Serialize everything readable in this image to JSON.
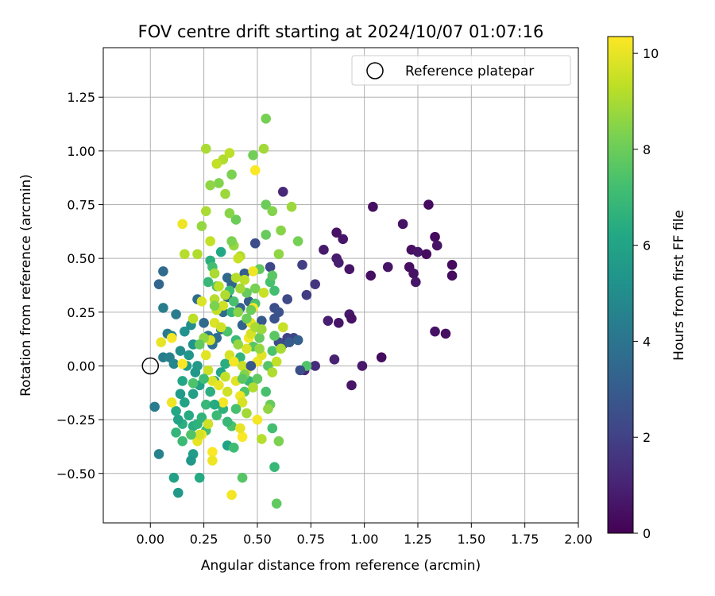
{
  "chart_data": {
    "type": "scatter",
    "title": "FOV centre drift starting at 2024/10/07 01:07:16",
    "xlabel": "Angular distance from reference (arcmin)",
    "ylabel": "Rotation from reference (arcmin)",
    "xlim": [
      -0.22,
      2.0
    ],
    "ylim": [
      -0.73,
      1.48
    ],
    "xticks": [
      0.0,
      0.25,
      0.5,
      0.75,
      1.0,
      1.25,
      1.5,
      1.75,
      2.0
    ],
    "xtick_labels": [
      "0.00",
      "0.25",
      "0.50",
      "0.75",
      "1.00",
      "1.25",
      "1.50",
      "1.75",
      "2.00"
    ],
    "yticks": [
      -0.5,
      -0.25,
      0.0,
      0.25,
      0.5,
      0.75,
      1.0,
      1.25
    ],
    "ytick_labels": [
      "−0.50",
      "−0.25",
      "0.00",
      "0.25",
      "0.50",
      "0.75",
      "1.00",
      "1.25"
    ],
    "grid": true,
    "legend": {
      "placement": "top-right",
      "entries": [
        {
          "label": "Reference platepar",
          "marker": "open-circle"
        }
      ]
    },
    "reference_point": {
      "x": 0.0,
      "y": 0.0
    },
    "colorbar": {
      "label": "Hours from first FF file",
      "colormap": "viridis",
      "range": [
        0,
        10.35
      ],
      "ticks": [
        0,
        2,
        4,
        6,
        8,
        10
      ],
      "tick_labels": [
        "0",
        "2",
        "4",
        "6",
        "8",
        "10"
      ]
    },
    "points": [
      [
        1.3,
        0.75,
        0.3
      ],
      [
        1.04,
        0.74,
        0.4
      ],
      [
        1.18,
        0.66,
        0.5
      ],
      [
        1.33,
        0.6,
        0.3
      ],
      [
        1.22,
        0.54,
        0.4
      ],
      [
        1.25,
        0.53,
        0.6
      ],
      [
        1.29,
        0.52,
        0.3
      ],
      [
        1.34,
        0.56,
        0.5
      ],
      [
        1.11,
        0.46,
        0.6
      ],
      [
        1.21,
        0.46,
        0.4
      ],
      [
        1.41,
        0.47,
        0.3
      ],
      [
        1.23,
        0.43,
        0.5
      ],
      [
        1.41,
        0.42,
        0.3
      ],
      [
        1.03,
        0.42,
        0.4
      ],
      [
        1.24,
        0.39,
        0.6
      ],
      [
        1.33,
        0.16,
        0.5
      ],
      [
        1.38,
        0.15,
        0.4
      ],
      [
        1.08,
        0.04,
        0.3
      ],
      [
        0.99,
        0.0,
        0.7
      ],
      [
        0.94,
        -0.09,
        0.6
      ],
      [
        0.87,
        0.62,
        0.5
      ],
      [
        0.9,
        0.59,
        0.6
      ],
      [
        0.81,
        0.54,
        0.7
      ],
      [
        0.87,
        0.5,
        0.8
      ],
      [
        0.88,
        0.48,
        0.9
      ],
      [
        0.93,
        0.45,
        0.6
      ],
      [
        0.93,
        0.24,
        0.7
      ],
      [
        0.94,
        0.22,
        0.5
      ],
      [
        0.83,
        0.21,
        0.9
      ],
      [
        0.88,
        0.2,
        0.6
      ],
      [
        0.86,
        0.03,
        1.0
      ],
      [
        0.77,
        0.0,
        1.3
      ],
      [
        0.62,
        0.81,
        1.2
      ],
      [
        0.73,
        0.33,
        1.8
      ],
      [
        0.77,
        0.38,
        1.6
      ],
      [
        0.71,
        0.47,
        1.9
      ],
      [
        0.67,
        0.13,
        2.1
      ],
      [
        0.72,
        -0.02,
        1.2
      ],
      [
        0.64,
        0.31,
        2.3
      ],
      [
        0.58,
        0.27,
        2.5
      ],
      [
        0.56,
        0.46,
        2.2
      ],
      [
        0.6,
        0.25,
        2.6
      ],
      [
        0.6,
        0.11,
        2.3
      ],
      [
        0.62,
        0.1,
        2.4
      ],
      [
        0.64,
        0.13,
        2.0
      ],
      [
        0.58,
        0.22,
        2.7
      ],
      [
        0.52,
        0.21,
        2.9
      ],
      [
        0.49,
        0.57,
        2.4
      ],
      [
        0.46,
        0.3,
        3.0
      ],
      [
        0.44,
        0.43,
        3.1
      ],
      [
        0.42,
        0.27,
        3.2
      ],
      [
        0.43,
        0.19,
        3.3
      ],
      [
        0.38,
        0.38,
        3.4
      ],
      [
        0.36,
        0.41,
        3.5
      ],
      [
        0.36,
        0.32,
        3.2
      ],
      [
        0.34,
        0.25,
        3.6
      ],
      [
        0.33,
        0.17,
        3.8
      ],
      [
        0.31,
        0.13,
        3.7
      ],
      [
        0.29,
        0.1,
        3.9
      ],
      [
        0.27,
        0.14,
        4.0
      ],
      [
        0.25,
        0.2,
        3.5
      ],
      [
        0.22,
        0.31,
        3.7
      ],
      [
        0.06,
        0.44,
        3.6
      ],
      [
        0.04,
        0.38,
        3.4
      ],
      [
        0.06,
        0.27,
        4.4
      ],
      [
        0.08,
        0.15,
        4.2
      ],
      [
        0.12,
        0.24,
        4.3
      ],
      [
        0.1,
        0.14,
        4.6
      ],
      [
        0.06,
        0.04,
        4.3
      ],
      [
        0.09,
        0.04,
        4.5
      ],
      [
        0.11,
        0.01,
        4.8
      ],
      [
        0.14,
        0.07,
        5.0
      ],
      [
        0.16,
        0.16,
        5.2
      ],
      [
        0.18,
        0.05,
        5.4
      ],
      [
        0.19,
        0.19,
        5.1
      ],
      [
        0.2,
        0.1,
        5.3
      ],
      [
        0.22,
        0.0,
        5.6
      ],
      [
        0.17,
        0.0,
        5.7
      ],
      [
        0.21,
        -0.03,
        5.5
      ],
      [
        0.2,
        -0.13,
        5.8
      ],
      [
        0.23,
        -0.09,
        5.9
      ],
      [
        0.15,
        -0.07,
        6.1
      ],
      [
        0.14,
        -0.13,
        5.6
      ],
      [
        0.16,
        -0.17,
        6.0
      ],
      [
        0.12,
        -0.21,
        6.2
      ],
      [
        0.18,
        -0.23,
        6.3
      ],
      [
        0.2,
        -0.28,
        6.4
      ],
      [
        0.15,
        -0.27,
        6.5
      ],
      [
        0.13,
        -0.25,
        6.0
      ],
      [
        0.22,
        -0.27,
        6.6
      ],
      [
        0.24,
        -0.24,
        6.7
      ],
      [
        0.12,
        -0.31,
        6.8
      ],
      [
        0.15,
        -0.35,
        7.0
      ],
      [
        0.2,
        -0.41,
        5.7
      ],
      [
        0.19,
        -0.44,
        5.5
      ],
      [
        0.11,
        -0.52,
        5.9
      ],
      [
        0.23,
        -0.52,
        6.3
      ],
      [
        0.13,
        -0.59,
        5.5
      ],
      [
        0.04,
        -0.41,
        4.5
      ],
      [
        0.02,
        -0.19,
        4.3
      ],
      [
        0.28,
        0.49,
        6.5
      ],
      [
        0.29,
        0.46,
        7.2
      ],
      [
        0.33,
        0.53,
        6.2
      ],
      [
        0.27,
        0.39,
        6.9
      ],
      [
        0.31,
        0.37,
        7.5
      ],
      [
        0.37,
        0.35,
        7.1
      ],
      [
        0.39,
        0.3,
        7.3
      ],
      [
        0.38,
        0.25,
        6.8
      ],
      [
        0.36,
        0.16,
        7.4
      ],
      [
        0.4,
        0.12,
        7.0
      ],
      [
        0.42,
        0.04,
        6.7
      ],
      [
        0.35,
        0.01,
        6.4
      ],
      [
        0.33,
        -0.03,
        6.1
      ],
      [
        0.3,
        -0.07,
        5.9
      ],
      [
        0.28,
        -0.12,
        6.5
      ],
      [
        0.26,
        -0.18,
        6.9
      ],
      [
        0.26,
        -0.3,
        7.2
      ],
      [
        0.31,
        -0.23,
        7.0
      ],
      [
        0.34,
        -0.2,
        6.6
      ],
      [
        0.36,
        -0.37,
        6.0
      ],
      [
        0.38,
        -0.28,
        7.4
      ],
      [
        0.39,
        -0.38,
        7.1
      ],
      [
        0.43,
        -0.52,
        7.6
      ],
      [
        0.44,
        -0.12,
        7.5
      ],
      [
        0.46,
        -0.07,
        6.8
      ],
      [
        0.5,
        -0.06,
        7.8
      ],
      [
        0.54,
        -0.12,
        7.3
      ],
      [
        0.56,
        -0.18,
        7.9
      ],
      [
        0.57,
        -0.29,
        7.2
      ],
      [
        0.58,
        -0.47,
        6.9
      ],
      [
        0.59,
        -0.64,
        7.8
      ],
      [
        0.55,
        0.0,
        7.6
      ],
      [
        0.57,
        0.07,
        7.4
      ],
      [
        0.58,
        0.14,
        7.7
      ],
      [
        0.51,
        0.13,
        7.9
      ],
      [
        0.48,
        0.09,
        7.6
      ],
      [
        0.49,
        0.29,
        7.4
      ],
      [
        0.51,
        0.45,
        7.8
      ],
      [
        0.54,
        0.61,
        7.9
      ],
      [
        0.56,
        0.39,
        7.3
      ],
      [
        0.57,
        0.42,
        7.7
      ],
      [
        0.58,
        0.35,
        7.2
      ],
      [
        0.54,
        0.75,
        8.0
      ],
      [
        0.57,
        0.72,
        8.4
      ],
      [
        0.66,
        0.74,
        8.8
      ],
      [
        0.61,
        0.63,
        8.5
      ],
      [
        0.69,
        0.58,
        8.2
      ],
      [
        0.6,
        0.52,
        8.6
      ],
      [
        0.54,
        1.15,
        8.2
      ],
      [
        0.53,
        1.01,
        8.9
      ],
      [
        0.48,
        0.98,
        8.1
      ],
      [
        0.38,
        0.89,
        8.3
      ],
      [
        0.4,
        0.68,
        8.0
      ],
      [
        0.37,
        0.71,
        8.5
      ],
      [
        0.35,
        0.8,
        8.8
      ],
      [
        0.32,
        0.85,
        8.4
      ],
      [
        0.28,
        0.84,
        8.6
      ],
      [
        0.34,
        0.96,
        9.1
      ],
      [
        0.37,
        0.99,
        9.3
      ],
      [
        0.26,
        1.01,
        9.0
      ],
      [
        0.31,
        0.94,
        9.4
      ],
      [
        0.39,
        0.56,
        8.7
      ],
      [
        0.42,
        0.51,
        9.1
      ],
      [
        0.41,
        0.5,
        9.5
      ],
      [
        0.4,
        0.41,
        9.2
      ],
      [
        0.44,
        0.4,
        9.3
      ],
      [
        0.38,
        0.58,
        8.3
      ],
      [
        0.26,
        0.72,
        9.0
      ],
      [
        0.24,
        0.65,
        8.7
      ],
      [
        0.28,
        0.58,
        9.4
      ],
      [
        0.22,
        0.52,
        9.1
      ],
      [
        0.3,
        0.43,
        9.0
      ],
      [
        0.32,
        0.37,
        9.3
      ],
      [
        0.35,
        0.33,
        9.1
      ],
      [
        0.34,
        0.28,
        9.6
      ],
      [
        0.31,
        0.26,
        9.4
      ],
      [
        0.3,
        0.2,
        9.8
      ],
      [
        0.28,
        0.12,
        9.7
      ],
      [
        0.26,
        0.05,
        9.9
      ],
      [
        0.27,
        -0.02,
        9.5
      ],
      [
        0.29,
        -0.07,
        9.8
      ],
      [
        0.32,
        -0.09,
        10.0
      ],
      [
        0.34,
        -0.17,
        10.2
      ],
      [
        0.36,
        -0.12,
        9.6
      ],
      [
        0.4,
        -0.07,
        9.9
      ],
      [
        0.42,
        -0.14,
        10.1
      ],
      [
        0.43,
        -0.17,
        9.7
      ],
      [
        0.45,
        -0.02,
        10.0
      ],
      [
        0.43,
        0.0,
        9.5
      ],
      [
        0.45,
        0.08,
        9.8
      ],
      [
        0.46,
        0.13,
        10.2
      ],
      [
        0.47,
        0.15,
        9.7
      ],
      [
        0.47,
        0.2,
        10.0
      ],
      [
        0.48,
        0.27,
        10.3
      ],
      [
        0.48,
        0.44,
        10.1
      ],
      [
        0.49,
        0.91,
        10.3
      ],
      [
        0.5,
        0.02,
        10.1
      ],
      [
        0.5,
        -0.25,
        10.2
      ],
      [
        0.43,
        -0.33,
        10.3
      ],
      [
        0.42,
        -0.29,
        10.0
      ],
      [
        0.38,
        -0.6,
        10.2
      ],
      [
        0.29,
        -0.4,
        10.3
      ],
      [
        0.29,
        -0.44,
        10.1
      ],
      [
        0.24,
        -0.32,
        10.2
      ],
      [
        0.22,
        -0.35,
        10.0
      ],
      [
        0.27,
        -0.27,
        9.6
      ],
      [
        0.23,
        -0.32,
        9.7
      ],
      [
        0.1,
        -0.17,
        10.1
      ],
      [
        0.15,
        0.01,
        10.3
      ],
      [
        0.1,
        0.13,
        10.2
      ],
      [
        0.05,
        0.11,
        10.0
      ],
      [
        0.15,
        0.66,
        10.1
      ],
      [
        0.16,
        0.52,
        9.2
      ],
      [
        0.2,
        0.22,
        9.3
      ],
      [
        0.24,
        0.3,
        9.8
      ],
      [
        0.3,
        0.31,
        9.2
      ],
      [
        0.33,
        0.18,
        9.6
      ],
      [
        0.37,
        0.05,
        9.7
      ],
      [
        0.39,
        0.02,
        10.2
      ],
      [
        0.35,
        -0.05,
        9.4
      ],
      [
        0.52,
        0.05,
        9.9
      ],
      [
        0.57,
        -0.03,
        9.1
      ],
      [
        0.59,
        0.02,
        9.4
      ],
      [
        0.62,
        0.18,
        9.5
      ],
      [
        0.61,
        0.08,
        9.0
      ],
      [
        0.55,
        -0.2,
        8.6
      ],
      [
        0.52,
        -0.34,
        9.2
      ],
      [
        0.45,
        -0.22,
        8.9
      ],
      [
        0.48,
        -0.1,
        9.1
      ],
      [
        0.6,
        -0.35,
        8.3
      ],
      [
        0.51,
        0.08,
        8.7
      ],
      [
        0.41,
        0.25,
        8.5
      ],
      [
        0.45,
        0.34,
        7.9
      ],
      [
        0.45,
        0.22,
        8.0
      ],
      [
        0.49,
        0.36,
        8.2
      ],
      [
        0.49,
        0.18,
        9.0
      ],
      [
        0.52,
        0.17,
        8.8
      ],
      [
        0.53,
        0.34,
        9.5
      ],
      [
        0.44,
        -0.04,
        8.4
      ],
      [
        0.41,
        0.1,
        8.7
      ],
      [
        0.42,
        0.36,
        8.9
      ],
      [
        0.3,
        0.28,
        8.3
      ],
      [
        0.25,
        0.13,
        8.6
      ],
      [
        0.23,
        0.1,
        7.8
      ],
      [
        0.2,
        -0.08,
        7.4
      ],
      [
        0.19,
        -0.32,
        7.5
      ],
      [
        0.25,
        -0.06,
        7.1
      ],
      [
        0.3,
        -0.18,
        6.3
      ],
      [
        0.43,
        -0.06,
        7.7
      ],
      [
        0.4,
        -0.2,
        7.3
      ],
      [
        0.36,
        -0.26,
        6.9
      ],
      [
        0.73,
        0.0,
        7.5
      ],
      [
        0.69,
        0.12,
        3.2
      ],
      [
        0.65,
        0.11,
        3.0
      ],
      [
        0.7,
        -0.02,
        2.5
      ],
      [
        0.47,
        0.26,
        8.0
      ],
      [
        0.47,
        0.0,
        2.8
      ]
    ]
  }
}
